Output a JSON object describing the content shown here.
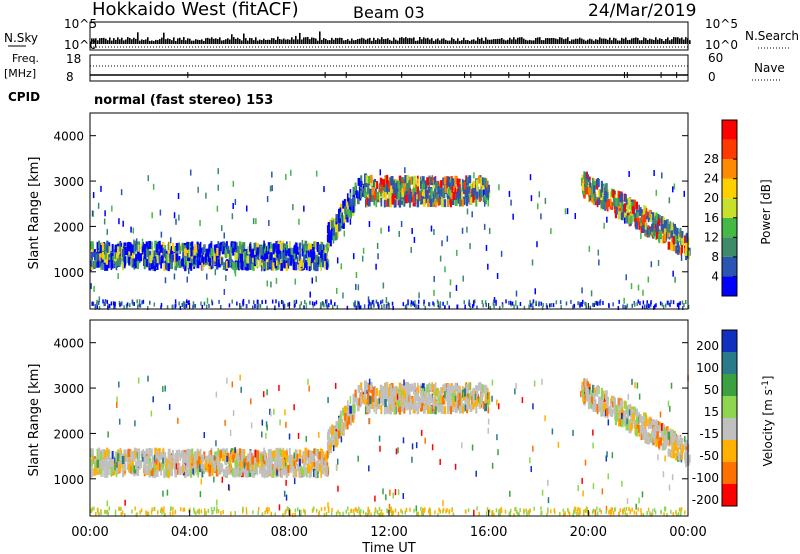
{
  "header": {
    "station": "Hokkaido West (fitACF)",
    "beam": "Beam 03",
    "date": "24/Mar/2019"
  },
  "top_panels": {
    "nsky_label": "N.Sky",
    "nsky_ticks": [
      "10^5",
      "10^0"
    ],
    "nsearch_label": "N.Search",
    "nsearch_ticks": [
      "10^5",
      "10^0"
    ],
    "freq_label": "Freq.",
    "freq_unit": "[MHz]",
    "freq_ticks": [
      "18",
      "8"
    ],
    "nave_label": "Nave",
    "nave_ticks": [
      "60",
      "0"
    ],
    "cpid_label": "CPID",
    "cpid_text": "normal (fast stereo) 153"
  },
  "chart_data": [
    {
      "type": "heatmap",
      "name": "power",
      "ylabel": "Slant Range [km]",
      "ylim": [
        180,
        4500
      ],
      "yticks": [
        "1000",
        "2000",
        "3000",
        "4000"
      ],
      "xlim_hours": [
        0,
        24
      ],
      "colorbar_label": "Power [dB]",
      "colorbar_ticks": [
        "4",
        "8",
        "12",
        "16",
        "20",
        "24",
        "28"
      ],
      "colors": [
        "#0000ff",
        "#2b55b3",
        "#3f8a6a",
        "#45b845",
        "#c8e02c",
        "#ffd000",
        "#ff8a00",
        "#ff3a00",
        "#ff0000"
      ],
      "echo_bands": [
        {
          "t0": 0.0,
          "t1": 9.5,
          "r0": 1100,
          "r1": 1600,
          "level": "mid"
        },
        {
          "t0": 9.5,
          "t1": 11.0,
          "r0": 1500,
          "r1": 2900,
          "level": "mid"
        },
        {
          "t0": 11.0,
          "t1": 16.0,
          "r0": 2500,
          "r1": 3050,
          "level": "high"
        },
        {
          "t0": 19.7,
          "t1": 24.0,
          "r0": 1300,
          "r1": 2900,
          "level": "high"
        }
      ]
    },
    {
      "type": "heatmap",
      "name": "velocity",
      "ylabel": "Slant Range [km]",
      "ylim": [
        180,
        4500
      ],
      "yticks": [
        "1000",
        "2000",
        "3000",
        "4000"
      ],
      "xlim_hours": [
        0,
        24
      ],
      "colorbar_label": "Velocity [m s-1]",
      "colorbar_ticks": [
        "200",
        "100",
        "50",
        "15",
        "-15",
        "-50",
        "-100",
        "-200"
      ],
      "colors": [
        "#1030c0",
        "#2a7a8a",
        "#3aa040",
        "#8fd650",
        "#c0c0c0",
        "#ffb000",
        "#ff7000",
        "#ff0000"
      ],
      "xticks": [
        "00:00",
        "04:00",
        "08:00",
        "12:00",
        "16:00",
        "20:00",
        "00:00"
      ],
      "xlabel": "Time UT"
    }
  ]
}
